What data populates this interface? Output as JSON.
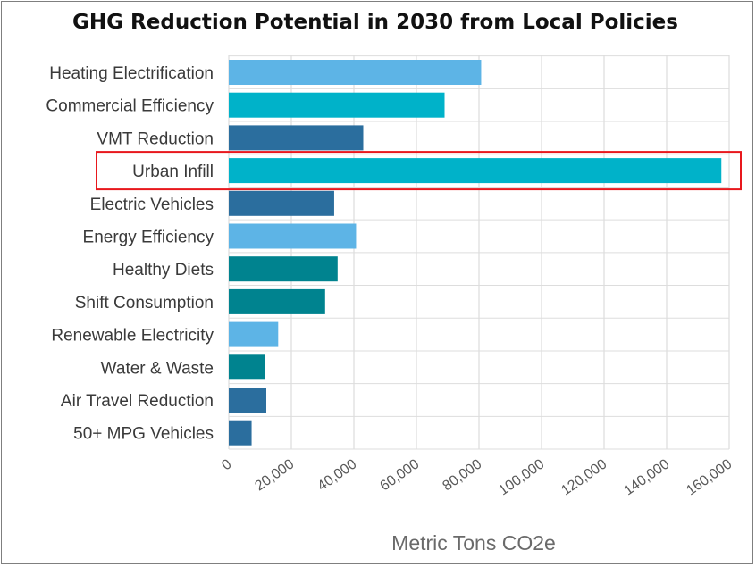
{
  "chart_data": {
    "type": "bar",
    "orientation": "horizontal",
    "title": "GHG Reduction Potential in 2030 from Local Policies",
    "xlabel": "Metric Tons CO2e",
    "ylabel": "",
    "xlim": [
      0,
      160000
    ],
    "grid": true,
    "categories": [
      "Heating Electrification",
      "Commercial Efficiency",
      "VMT Reduction",
      "Urban Infill",
      "Electric Vehicles",
      "Energy Efficiency",
      "Healthy Diets",
      "Shift Consumption",
      "Renewable Electricity",
      "Water & Waste",
      "Air Travel Reduction",
      "50+ MPG Vehicles"
    ],
    "values": [
      80700,
      69000,
      43000,
      157500,
      33700,
      40700,
      34800,
      30800,
      15800,
      11500,
      12000,
      7300
    ],
    "bar_colors": [
      "#5db4e6",
      "#00b2c9",
      "#2b6e9e",
      "#00b2c9",
      "#2b6e9e",
      "#5db4e6",
      "#00838f",
      "#00838f",
      "#5db4e6",
      "#00838f",
      "#2b6e9e",
      "#2b6e9e"
    ],
    "x_ticks": [
      "0",
      "20,000",
      "40,000",
      "60,000",
      "80,000",
      "100,000",
      "120,000",
      "140,000",
      "160,000"
    ],
    "x_tick_values": [
      0,
      20000,
      40000,
      60000,
      80000,
      100000,
      120000,
      140000,
      160000
    ],
    "highlight": {
      "category": "Urban Infill",
      "color": "#e8181d"
    }
  }
}
